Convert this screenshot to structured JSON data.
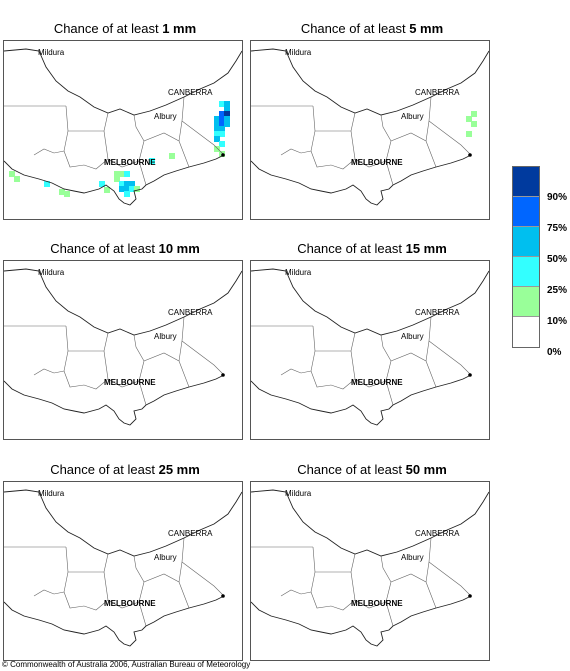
{
  "panels": [
    {
      "prefix": "Chance of at least ",
      "amount": "1 mm"
    },
    {
      "prefix": "Chance of at least ",
      "amount": "5 mm"
    },
    {
      "prefix": "Chance of at least ",
      "amount": "10 mm"
    },
    {
      "prefix": "Chance of at least ",
      "amount": "15 mm"
    },
    {
      "prefix": "Chance of at least ",
      "amount": "25 mm"
    },
    {
      "prefix": "Chance of at least ",
      "amount": "50 mm"
    }
  ],
  "map_labels": {
    "mildura": "Mildura",
    "canberra": "CANBERRA",
    "albury": "Albury",
    "melbourne": "MELBOURNE"
  },
  "legend": {
    "labels": [
      "90%",
      "75%",
      "50%",
      "25%",
      "10%",
      "0%"
    ],
    "colors": [
      "#003a9e",
      "#0066ff",
      "#00bfef",
      "#33ffff",
      "#99ff99",
      "#ffffff"
    ]
  },
  "copyright": "© Commonwealth of Australia 2006, Australian Bureau of Meteorology"
}
